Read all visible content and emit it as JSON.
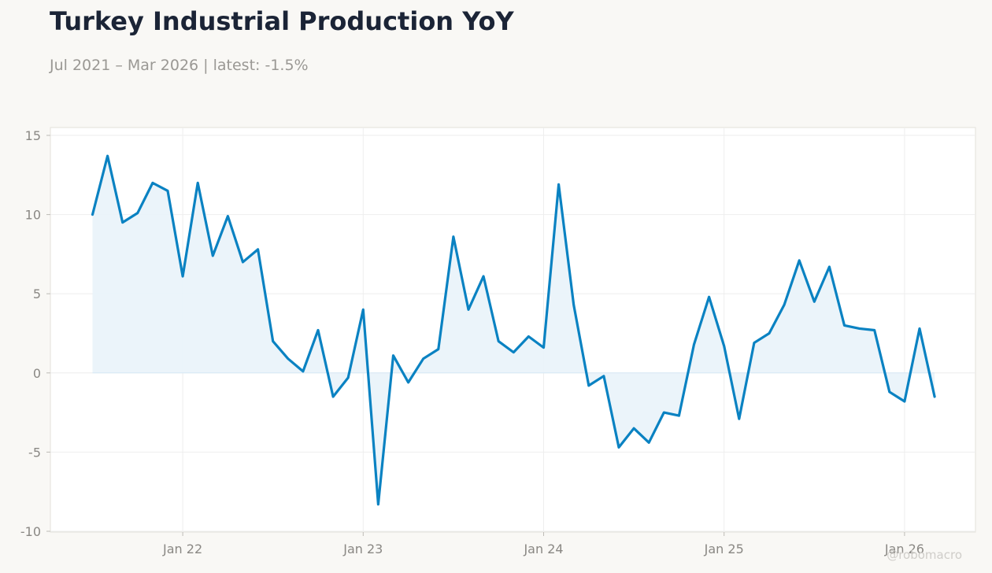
{
  "header": {
    "title": "Turkey Industrial Production YoY",
    "subtitle": "Jul 2021 – Mar 2026 | latest: -1.5%"
  },
  "watermark": "@robomacro",
  "colors": {
    "line": "#0a82c2",
    "fill": "#e9f3fa",
    "background": "#f9f8f5",
    "plot_background": "#ffffff",
    "grid": "#eeeeee"
  },
  "chart_data": {
    "type": "area",
    "title": "Turkey Industrial Production YoY",
    "subtitle": "Jul 2021 – Mar 2026 | latest: -1.5%",
    "xlabel": "",
    "ylabel": "",
    "ylim": [
      -10,
      15
    ],
    "yticks": [
      15,
      10,
      5,
      0,
      -5,
      -10
    ],
    "ytick_labels": [
      "15",
      "10",
      "5",
      "0",
      "-5",
      "-10"
    ],
    "xticks": [
      {
        "date": "2022-01",
        "label": "Jan 22"
      },
      {
        "date": "2023-01",
        "label": "Jan 23"
      },
      {
        "date": "2024-01",
        "label": "Jan 24"
      },
      {
        "date": "2025-01",
        "label": "Jan 25"
      },
      {
        "date": "2026-01",
        "label": "Jan 26"
      }
    ],
    "grid": true,
    "legend": "none",
    "x": [
      "2021-07",
      "2021-08",
      "2021-09",
      "2021-10",
      "2021-11",
      "2021-12",
      "2022-01",
      "2022-02",
      "2022-03",
      "2022-04",
      "2022-05",
      "2022-06",
      "2022-07",
      "2022-08",
      "2022-09",
      "2022-10",
      "2022-11",
      "2022-12",
      "2023-01",
      "2023-02",
      "2023-03",
      "2023-04",
      "2023-05",
      "2023-06",
      "2023-07",
      "2023-08",
      "2023-09",
      "2023-10",
      "2023-11",
      "2023-12",
      "2024-01",
      "2024-02",
      "2024-03",
      "2024-04",
      "2024-05",
      "2024-06",
      "2024-07",
      "2024-08",
      "2024-09",
      "2024-10",
      "2024-11",
      "2024-12",
      "2025-01",
      "2025-02",
      "2025-03",
      "2025-04",
      "2025-05",
      "2025-06",
      "2025-07",
      "2025-08",
      "2025-09",
      "2025-10",
      "2025-11",
      "2025-12",
      "2026-01",
      "2026-02",
      "2026-03"
    ],
    "series": [
      {
        "values": [
          10.0,
          13.7,
          9.5,
          10.1,
          12.0,
          11.5,
          6.1,
          12.0,
          7.4,
          9.9,
          7.0,
          7.8,
          2.0,
          0.9,
          0.1,
          2.7,
          -1.5,
          -0.3,
          4.0,
          -8.3,
          1.1,
          -0.6,
          0.9,
          1.5,
          8.6,
          4.0,
          6.1,
          2.0,
          1.3,
          2.3,
          1.6,
          11.9,
          4.3,
          -0.8,
          -0.2,
          -4.7,
          -3.5,
          -4.4,
          -2.5,
          -2.7,
          1.8,
          4.8,
          1.7,
          -2.9,
          1.9,
          2.5,
          4.3,
          7.1,
          4.5,
          6.7,
          3.0,
          2.8,
          2.7,
          -1.2,
          -1.8,
          2.8,
          -1.5
        ]
      }
    ]
  }
}
